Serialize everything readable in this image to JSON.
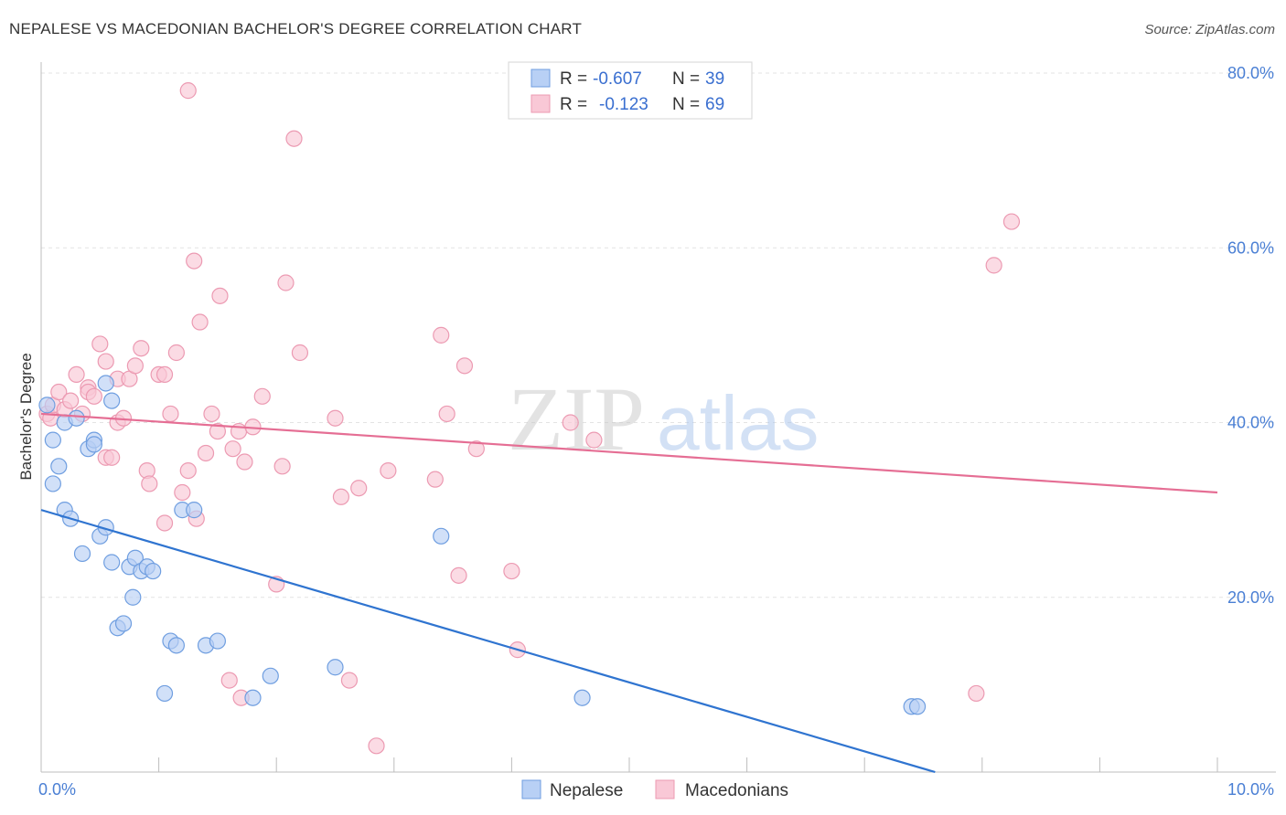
{
  "title": "NEPALESE VS MACEDONIAN BACHELOR'S DEGREE CORRELATION CHART",
  "source": "Source: ZipAtlas.com",
  "watermark": {
    "zip": "ZIP",
    "atlas": "atlas"
  },
  "colors": {
    "nepalese_fill": "#b8d0f5",
    "nepalese_stroke": "#6f9ee0",
    "nepalese_line": "#2f74d0",
    "macedonian_fill": "#f9c8d6",
    "macedonian_stroke": "#ec9ab2",
    "macedonian_line": "#e56e94",
    "tick_color": "#4a7fd4"
  },
  "legend": {
    "rows": [
      {
        "r_label": "R =",
        "r_value": "-0.607",
        "n_label": "N =",
        "n_value": "39"
      },
      {
        "r_label": "R =",
        "r_value": "-0.123",
        "n_label": "N =",
        "n_value": "69"
      }
    ]
  },
  "bottom_legend": {
    "nepalese": "Nepalese",
    "macedonians": "Macedonians"
  },
  "chart_data": {
    "type": "scatter",
    "title": "NEPALESE VS MACEDONIAN BACHELOR'S DEGREE CORRELATION CHART",
    "xlabel": "",
    "ylabel": "Bachelor's Degree",
    "xlim": [
      0,
      10
    ],
    "ylim": [
      0,
      80
    ],
    "x_tick_labels": [
      "0.0%",
      "10.0%"
    ],
    "y_ticks": [
      20,
      40,
      60,
      80
    ],
    "y_tick_labels": [
      "20.0%",
      "40.0%",
      "60.0%",
      "80.0%"
    ],
    "grid": true,
    "legend_position": "top-center",
    "series": [
      {
        "name": "Nepalese",
        "r": -0.607,
        "n": 39,
        "trend": {
          "x": [
            0,
            7.6
          ],
          "y": [
            30.0,
            0.0
          ]
        },
        "points": [
          [
            0.05,
            42.0
          ],
          [
            0.1,
            38.0
          ],
          [
            0.1,
            33.0
          ],
          [
            0.15,
            35.0
          ],
          [
            0.2,
            30.0
          ],
          [
            0.2,
            40.0
          ],
          [
            0.25,
            29.0
          ],
          [
            0.3,
            40.5
          ],
          [
            0.35,
            25.0
          ],
          [
            0.4,
            37.0
          ],
          [
            0.45,
            38.0
          ],
          [
            0.45,
            37.5
          ],
          [
            0.5,
            27.0
          ],
          [
            0.55,
            28.0
          ],
          [
            0.55,
            44.5
          ],
          [
            0.6,
            24.0
          ],
          [
            0.6,
            42.5
          ],
          [
            0.65,
            16.5
          ],
          [
            0.7,
            17.0
          ],
          [
            0.75,
            23.5
          ],
          [
            0.78,
            20.0
          ],
          [
            0.8,
            24.5
          ],
          [
            0.85,
            23.0
          ],
          [
            0.9,
            23.5
          ],
          [
            0.95,
            23.0
          ],
          [
            1.05,
            9.0
          ],
          [
            1.1,
            15.0
          ],
          [
            1.15,
            14.5
          ],
          [
            1.2,
            30.0
          ],
          [
            1.3,
            30.0
          ],
          [
            1.4,
            14.5
          ],
          [
            1.5,
            15.0
          ],
          [
            1.8,
            8.5
          ],
          [
            1.95,
            11.0
          ],
          [
            2.5,
            12.0
          ],
          [
            3.4,
            27.0
          ],
          [
            4.6,
            8.5
          ],
          [
            7.4,
            7.5
          ],
          [
            7.45,
            7.5
          ]
        ]
      },
      {
        "name": "Macedonians",
        "r": -0.123,
        "n": 69,
        "trend": {
          "x": [
            0,
            10
          ],
          "y": [
            41.0,
            32.0
          ]
        },
        "points": [
          [
            0.05,
            41.0
          ],
          [
            0.08,
            40.5
          ],
          [
            0.1,
            42.0
          ],
          [
            0.15,
            43.5
          ],
          [
            0.2,
            41.5
          ],
          [
            0.25,
            42.5
          ],
          [
            0.3,
            45.5
          ],
          [
            0.35,
            41.0
          ],
          [
            0.4,
            44.0
          ],
          [
            0.4,
            43.5
          ],
          [
            0.45,
            43.0
          ],
          [
            0.5,
            49.0
          ],
          [
            0.55,
            47.0
          ],
          [
            0.55,
            36.0
          ],
          [
            0.6,
            36.0
          ],
          [
            0.65,
            40.0
          ],
          [
            0.65,
            45.0
          ],
          [
            0.7,
            40.5
          ],
          [
            0.75,
            45.0
          ],
          [
            0.8,
            46.5
          ],
          [
            0.85,
            48.5
          ],
          [
            0.9,
            34.5
          ],
          [
            0.92,
            33.0
          ],
          [
            1.0,
            45.5
          ],
          [
            1.05,
            28.5
          ],
          [
            1.05,
            45.5
          ],
          [
            1.1,
            41.0
          ],
          [
            1.15,
            48.0
          ],
          [
            1.2,
            32.0
          ],
          [
            1.25,
            78.0
          ],
          [
            1.25,
            34.5
          ],
          [
            1.3,
            58.5
          ],
          [
            1.32,
            29.0
          ],
          [
            1.35,
            51.5
          ],
          [
            1.4,
            36.5
          ],
          [
            1.45,
            41.0
          ],
          [
            1.5,
            39.0
          ],
          [
            1.52,
            54.5
          ],
          [
            1.6,
            10.5
          ],
          [
            1.63,
            37.0
          ],
          [
            1.68,
            39.0
          ],
          [
            1.7,
            8.5
          ],
          [
            1.73,
            35.5
          ],
          [
            1.8,
            39.5
          ],
          [
            1.88,
            43.0
          ],
          [
            2.0,
            21.5
          ],
          [
            2.05,
            35.0
          ],
          [
            2.08,
            56.0
          ],
          [
            2.15,
            72.5
          ],
          [
            2.2,
            48.0
          ],
          [
            2.5,
            40.5
          ],
          [
            2.55,
            31.5
          ],
          [
            2.62,
            10.5
          ],
          [
            2.7,
            32.5
          ],
          [
            2.85,
            3.0
          ],
          [
            2.95,
            34.5
          ],
          [
            3.35,
            33.5
          ],
          [
            3.4,
            50.0
          ],
          [
            3.45,
            41.0
          ],
          [
            3.55,
            22.5
          ],
          [
            3.6,
            46.5
          ],
          [
            3.7,
            37.0
          ],
          [
            4.0,
            23.0
          ],
          [
            4.05,
            14.0
          ],
          [
            4.5,
            40.0
          ],
          [
            4.7,
            38.0
          ],
          [
            8.1,
            58.0
          ],
          [
            8.25,
            63.0
          ],
          [
            7.95,
            9.0
          ]
        ]
      }
    ]
  }
}
